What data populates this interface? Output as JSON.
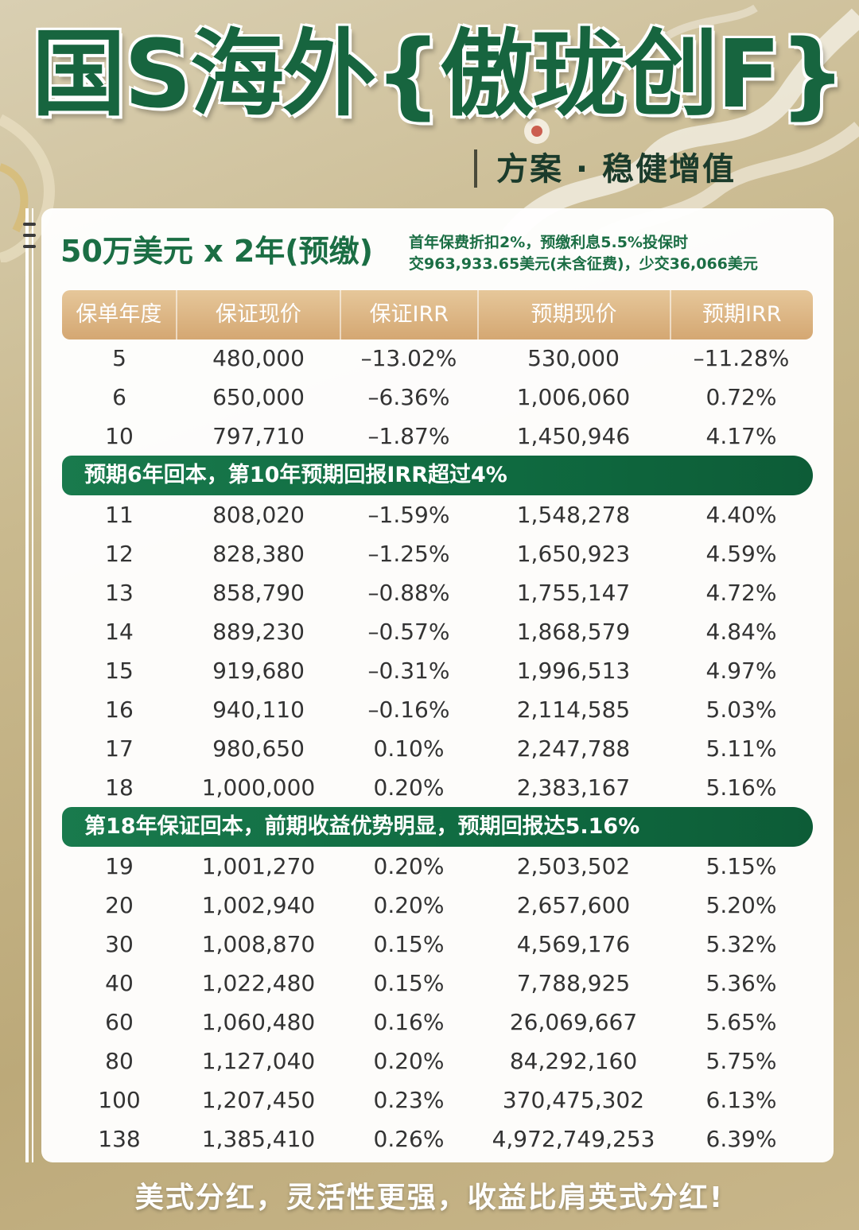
{
  "header": {
    "title": "国S海外{傲珑创F}",
    "subtitle": "方案 · 稳健增值"
  },
  "plan": {
    "title": "50万美元 x 2年(预缴)",
    "note_line1": "首年保费折扣2%，预缴利息5.5%投保时",
    "note_line2": "交963,933.65美元(未含征费)，少交36,066美元"
  },
  "table": {
    "headers": [
      "保单年度",
      "保证现价",
      "保证IRR",
      "预期现价",
      "预期IRR"
    ],
    "rows_a": [
      [
        "5",
        "480,000",
        "–13.02%",
        "530,000",
        "–11.28%"
      ],
      [
        "6",
        "650,000",
        "–6.36%",
        "1,006,060",
        "0.72%"
      ],
      [
        "10",
        "797,710",
        "–1.87%",
        "1,450,946",
        "4.17%"
      ]
    ],
    "banner_1": "预期6年回本，第10年预期回报IRR超过4%",
    "rows_b": [
      [
        "11",
        "808,020",
        "–1.59%",
        "1,548,278",
        "4.40%"
      ],
      [
        "12",
        "828,380",
        "–1.25%",
        "1,650,923",
        "4.59%"
      ],
      [
        "13",
        "858,790",
        "–0.88%",
        "1,755,147",
        "4.72%"
      ],
      [
        "14",
        "889,230",
        "–0.57%",
        "1,868,579",
        "4.84%"
      ],
      [
        "15",
        "919,680",
        "–0.31%",
        "1,996,513",
        "4.97%"
      ],
      [
        "16",
        "940,110",
        "–0.16%",
        "2,114,585",
        "5.03%"
      ],
      [
        "17",
        "980,650",
        "0.10%",
        "2,247,788",
        "5.11%"
      ],
      [
        "18",
        "1,000,000",
        "0.20%",
        "2,383,167",
        "5.16%"
      ]
    ],
    "banner_2": "第18年保证回本，前期收益优势明显，预期回报达5.16%",
    "rows_c": [
      [
        "19",
        "1,001,270",
        "0.20%",
        "2,503,502",
        "5.15%"
      ],
      [
        "20",
        "1,002,940",
        "0.20%",
        "2,657,600",
        "5.20%"
      ],
      [
        "30",
        "1,008,870",
        "0.15%",
        "4,569,176",
        "5.32%"
      ],
      [
        "40",
        "1,022,480",
        "0.15%",
        "7,788,925",
        "5.36%"
      ],
      [
        "60",
        "1,060,480",
        "0.16%",
        "26,069,667",
        "5.65%"
      ],
      [
        "80",
        "1,127,040",
        "0.20%",
        "84,292,160",
        "5.75%"
      ],
      [
        "100",
        "1,207,450",
        "0.23%",
        "370,475,302",
        "6.13%"
      ],
      [
        "138",
        "1,385,410",
        "0.26%",
        "4,972,749,253",
        "6.39%"
      ]
    ]
  },
  "footer": {
    "text": "美式分红，灵活性更强，收益比肩英式分红!"
  },
  "colors": {
    "brand_green": "#17653f",
    "banner_green": "#0f6a40",
    "header_gold": "#d4a772",
    "background_gold": "#c9b98e"
  }
}
